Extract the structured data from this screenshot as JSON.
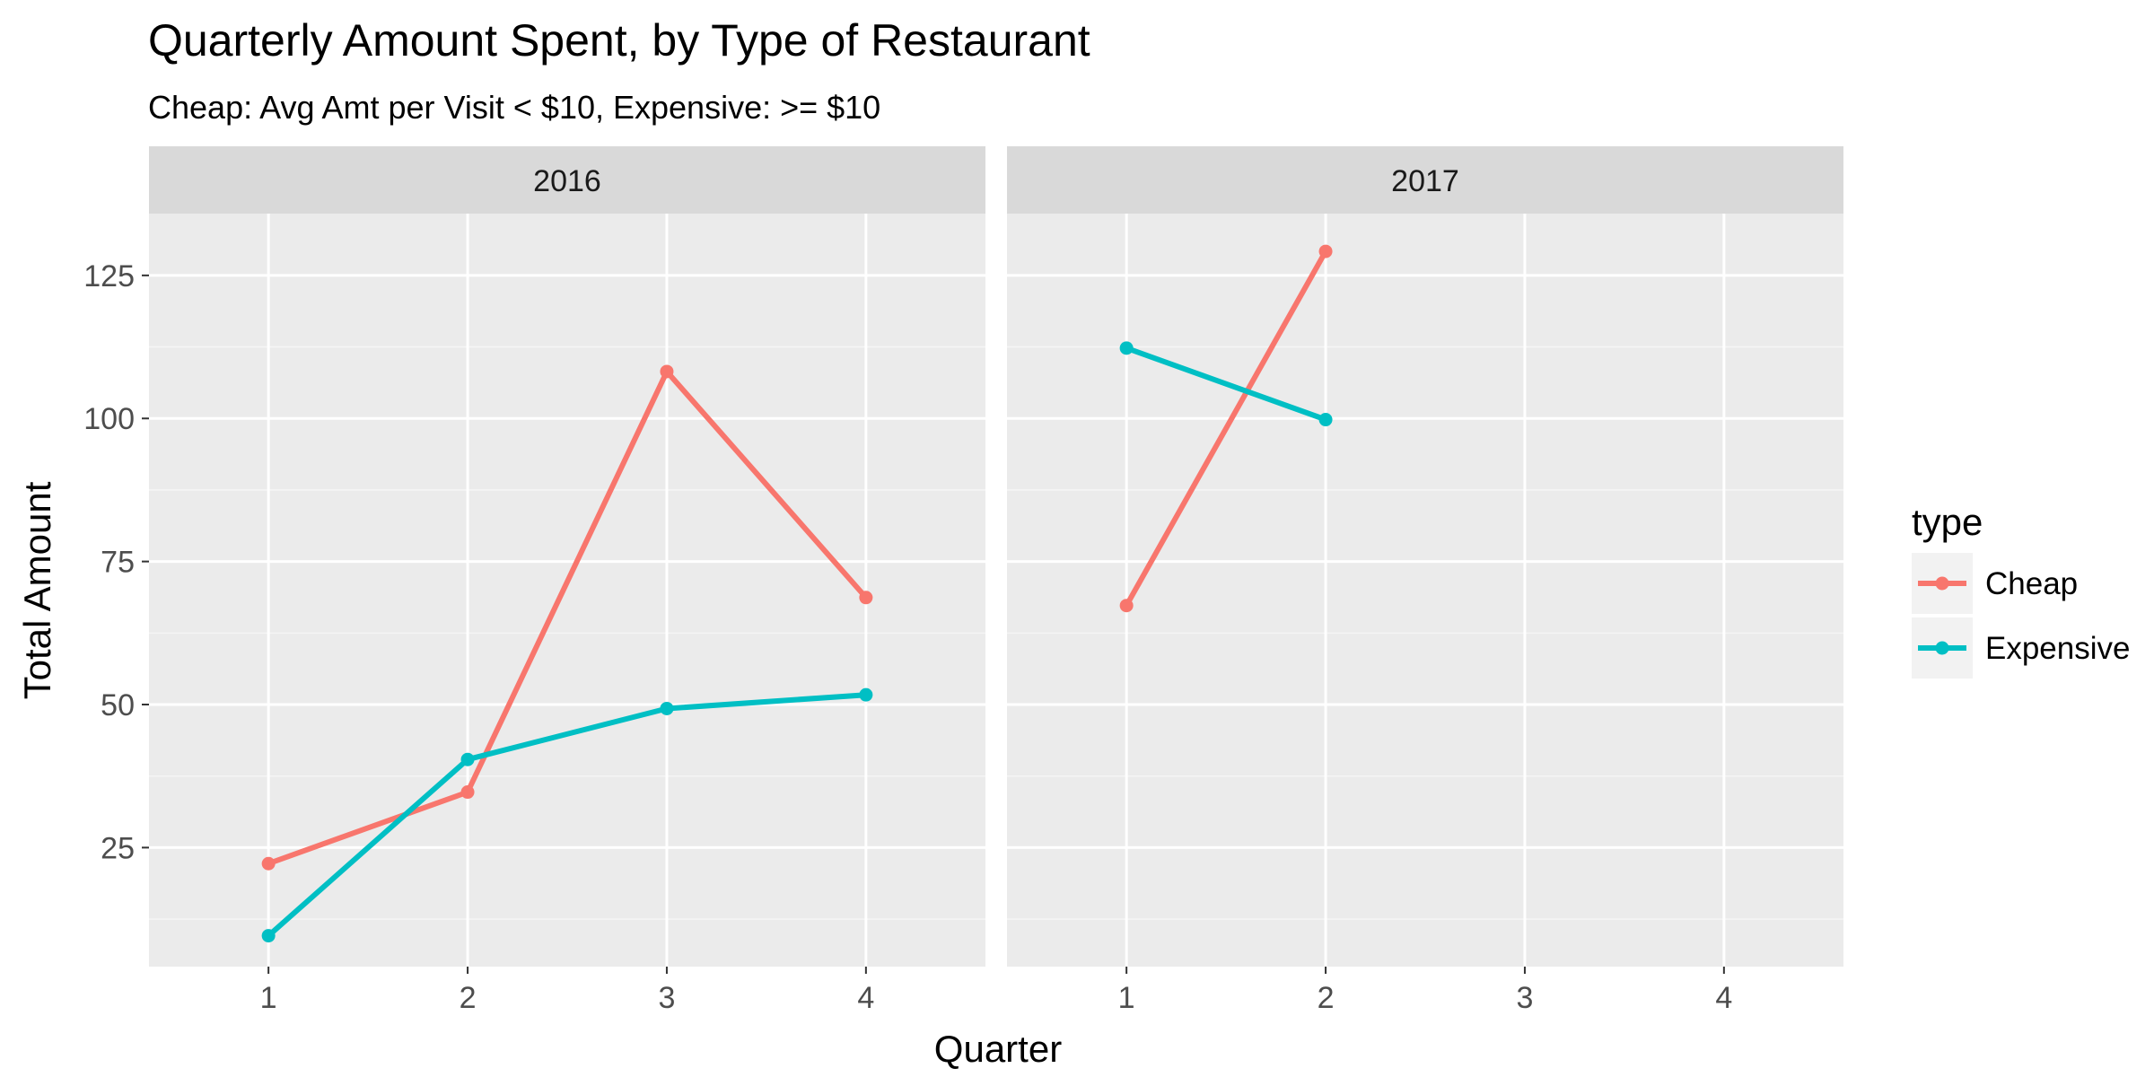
{
  "chart_data": {
    "type": "line",
    "title": "Quarterly Amount Spent, by Type of Restaurant",
    "subtitle": "Cheap: Avg Amt per Visit < $10,  Expensive: >= $10",
    "xlabel": "Quarter",
    "ylabel": "Total Amount",
    "x_ticks": [
      1,
      2,
      3,
      4
    ],
    "y_ticks": [
      25,
      50,
      75,
      100,
      125
    ],
    "xlim": [
      0.4,
      4.6
    ],
    "ylim": [
      4.2,
      135.8
    ],
    "grid": true,
    "legend": {
      "title": "type",
      "position": "right",
      "entries": [
        {
          "name": "Cheap",
          "color": "#F8766D"
        },
        {
          "name": "Expensive",
          "color": "#00BFC4"
        }
      ]
    },
    "panels": [
      {
        "label": "2016",
        "series": [
          {
            "name": "Cheap",
            "color": "#F8766D",
            "x": [
              1,
              2,
              3,
              4
            ],
            "y": [
              22.2,
              34.7,
              108.2,
              68.7
            ]
          },
          {
            "name": "Expensive",
            "color": "#00BFC4",
            "x": [
              1,
              2,
              3,
              4
            ],
            "y": [
              9.6,
              40.4,
              49.3,
              51.7
            ]
          }
        ]
      },
      {
        "label": "2017",
        "series": [
          {
            "name": "Cheap",
            "color": "#F8766D",
            "x": [
              1,
              2
            ],
            "y": [
              67.3,
              129.2
            ]
          },
          {
            "name": "Expensive",
            "color": "#00BFC4",
            "x": [
              1,
              2
            ],
            "y": [
              112.3,
              99.8
            ]
          }
        ]
      }
    ]
  }
}
